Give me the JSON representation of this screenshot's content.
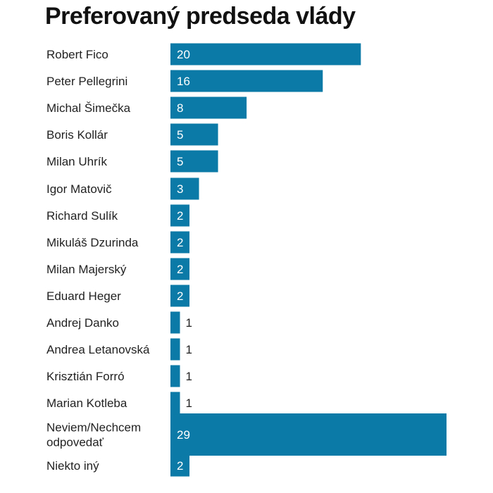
{
  "chart_data": {
    "type": "bar",
    "orientation": "horizontal",
    "title": "Preferovaný predseda vlády",
    "xlabel": "",
    "ylabel": "",
    "xlim": [
      0,
      29
    ],
    "grid": false,
    "bar_color": "#0b7aa6",
    "inside_label_color": "#ffffff",
    "outside_label_color": "#222222",
    "categories": [
      "Robert Fico",
      "Peter Pellegrini",
      "Michal Šimečka",
      "Boris Kollár",
      "Milan Uhrík",
      "Igor Matovič",
      "Richard Sulík",
      "Mikuláš Dzurinda",
      "Milan Majerský",
      "Eduard Heger",
      "Andrej Danko",
      "Andrea Letanovská",
      "Krisztián Forró",
      "Marian Kotleba",
      "Neviem/Nechcem odpovedať",
      "Niekto iný"
    ],
    "values": [
      20,
      16,
      8,
      5,
      5,
      3,
      2,
      2,
      2,
      2,
      1,
      1,
      1,
      1,
      29,
      2
    ]
  }
}
